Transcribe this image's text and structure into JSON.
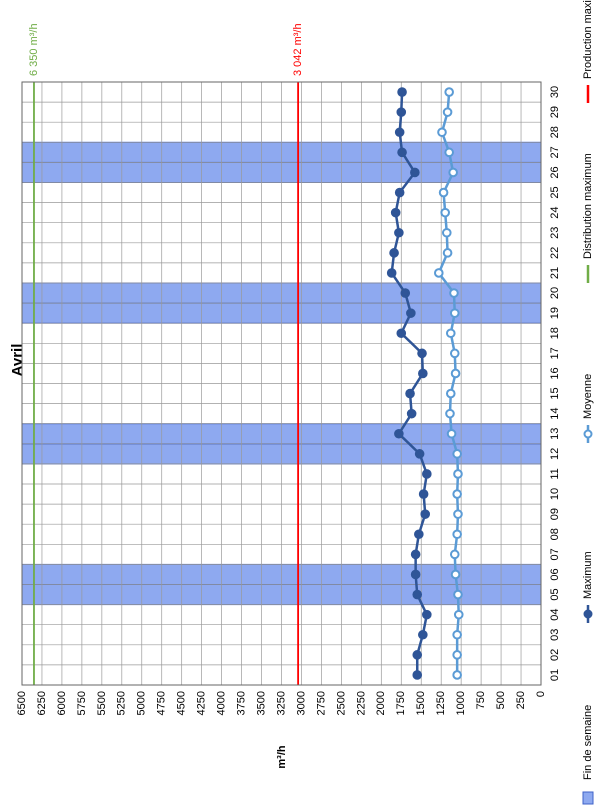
{
  "chart_data": {
    "type": "line",
    "title": "Avril",
    "y_label": "m³/h",
    "categories": [
      "01",
      "02",
      "03",
      "04",
      "05",
      "06",
      "07",
      "08",
      "09",
      "10",
      "11",
      "12",
      "13",
      "14",
      "15",
      "16",
      "17",
      "18",
      "19",
      "20",
      "21",
      "22",
      "23",
      "24",
      "25",
      "26",
      "27",
      "28",
      "29",
      "30"
    ],
    "ylim": [
      0,
      6500
    ],
    "yticks": [
      0,
      250,
      500,
      750,
      1000,
      1250,
      1500,
      1750,
      2000,
      2250,
      2500,
      2750,
      3000,
      3250,
      3500,
      3750,
      4000,
      4250,
      4500,
      4750,
      5000,
      5250,
      5500,
      5750,
      6000,
      6250,
      6500
    ],
    "grid": true,
    "series": [
      {
        "name": "Fin de semaine",
        "type": "bar",
        "color": "#8ea9f0",
        "edge_color": "#3f62c8",
        "values": [
          null,
          null,
          null,
          null,
          6500,
          6500,
          null,
          null,
          null,
          null,
          null,
          6500,
          6500,
          null,
          null,
          null,
          null,
          null,
          6500,
          6500,
          null,
          null,
          null,
          null,
          null,
          6500,
          6500,
          null,
          null,
          null
        ]
      },
      {
        "name": "Maximum",
        "type": "line",
        "color": "#2f5597",
        "marker_fill": "#2f5597",
        "values": [
          1550,
          1550,
          1480,
          1430,
          1550,
          1570,
          1570,
          1530,
          1450,
          1470,
          1430,
          1520,
          1780,
          1620,
          1640,
          1480,
          1490,
          1750,
          1630,
          1700,
          1870,
          1840,
          1780,
          1820,
          1770,
          1580,
          1740,
          1770,
          1750,
          1740
        ]
      },
      {
        "name": "Moyenne",
        "type": "line",
        "color": "#5b9bd5",
        "marker_fill": "#ffffff",
        "values": [
          1050,
          1050,
          1050,
          1030,
          1040,
          1070,
          1080,
          1050,
          1040,
          1050,
          1040,
          1050,
          1120,
          1140,
          1130,
          1070,
          1080,
          1130,
          1080,
          1090,
          1280,
          1170,
          1180,
          1200,
          1220,
          1100,
          1150,
          1240,
          1170,
          1150
        ]
      }
    ],
    "reference_lines": [
      {
        "name": "Distribution maximum",
        "value": 6350,
        "label": "6 350 m³/h",
        "color": "#70ad47"
      },
      {
        "name": "Production maximum",
        "value": 3042,
        "label": "3 042 m³/h",
        "color": "#ff0000"
      }
    ]
  }
}
